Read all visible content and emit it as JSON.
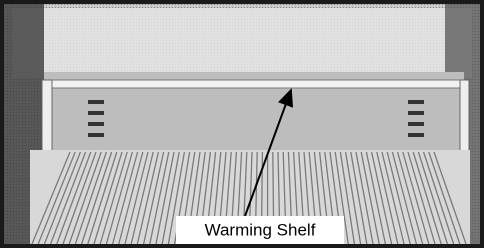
{
  "annotation": {
    "label": "Warming Shelf"
  }
}
